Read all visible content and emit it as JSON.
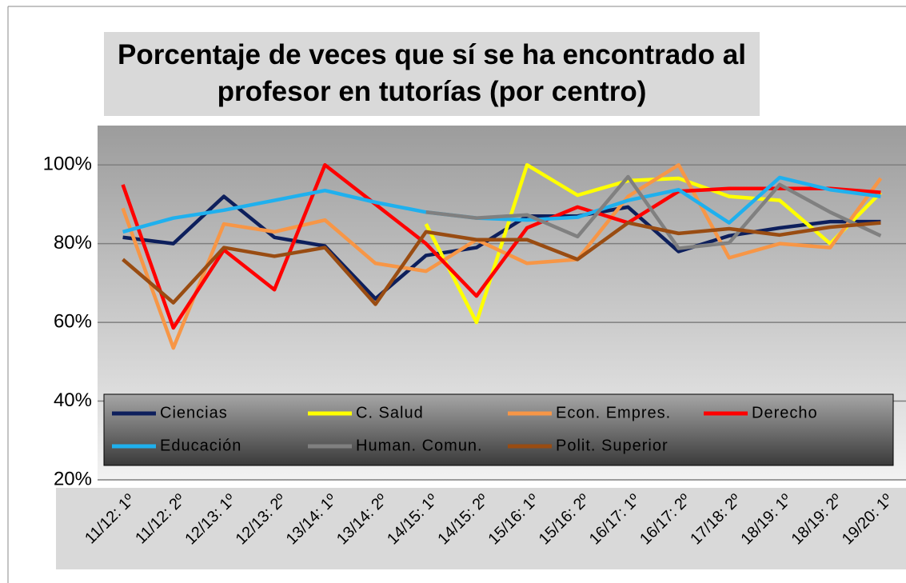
{
  "chart_data": {
    "type": "line",
    "title": "Porcentaje de veces que sí se ha encontrado al profesor en tutorías (por centro)",
    "categories": [
      "11/12: 1º",
      "11/12: 2º",
      "12/13: 1º",
      "12/13: 2º",
      "13/14: 1º",
      "13/14: 2º",
      "14/15: 1º",
      "14/15: 2º",
      "15/16: 1º",
      "15/16: 2º",
      "16/17: 1º",
      "16/17: 2º",
      "17/18: 2º",
      "18/19: 1º",
      "18/19: 2º",
      "19/20: 1º"
    ],
    "ylim": [
      20,
      110
    ],
    "yticks": [
      {
        "value": 20,
        "label": "20%"
      },
      {
        "value": 40,
        "label": "40%"
      },
      {
        "value": 60,
        "label": "60%"
      },
      {
        "value": 80,
        "label": "80%"
      },
      {
        "value": 100,
        "label": "100%"
      }
    ],
    "grid": true,
    "legend": "bottom",
    "series": [
      {
        "name": "Ciencias",
        "color": "#0d1f5c",
        "values": [
          81.6,
          80,
          92,
          81.6,
          79.4,
          66,
          77,
          79,
          87,
          87,
          89.3,
          78,
          82,
          84,
          85.6,
          85.6
        ]
      },
      {
        "name": "C. Salud",
        "color": "#ffff00",
        "values": [
          null,
          null,
          null,
          null,
          null,
          null,
          85,
          60,
          100,
          92.3,
          96,
          96.6,
          92,
          91,
          80,
          93
        ]
      },
      {
        "name": "Econ. Empres.",
        "color": "#f79646",
        "values": [
          89,
          53.5,
          85,
          83,
          86,
          75,
          73,
          81,
          75,
          76,
          92,
          100,
          76.4,
          80,
          79,
          96.6
        ]
      },
      {
        "name": "Derecho",
        "color": "#ff0000",
        "values": [
          95,
          58.6,
          78.4,
          68.3,
          100,
          90,
          80,
          66.7,
          84,
          89.3,
          85.3,
          93.3,
          94,
          94,
          94,
          93
        ]
      },
      {
        "name": "Educación",
        "color": "#1fb0ee",
        "values": [
          83,
          86.5,
          88.5,
          91,
          93.5,
          90.5,
          88,
          86.5,
          86,
          86.7,
          91,
          93.7,
          85.3,
          96.8,
          93.7,
          92
        ]
      },
      {
        "name": "Human. Comun.",
        "color": "#808080",
        "values": [
          null,
          null,
          null,
          null,
          null,
          null,
          88,
          86.5,
          87.3,
          81.8,
          97,
          78.8,
          80.2,
          95,
          88,
          82
        ]
      },
      {
        "name": "Polit. Superior",
        "color": "#994c12",
        "values": [
          76,
          65,
          79,
          76.8,
          79,
          64.6,
          83,
          81,
          81,
          76,
          85.3,
          82.6,
          83.8,
          82.2,
          84.2,
          85.3
        ]
      }
    ]
  }
}
